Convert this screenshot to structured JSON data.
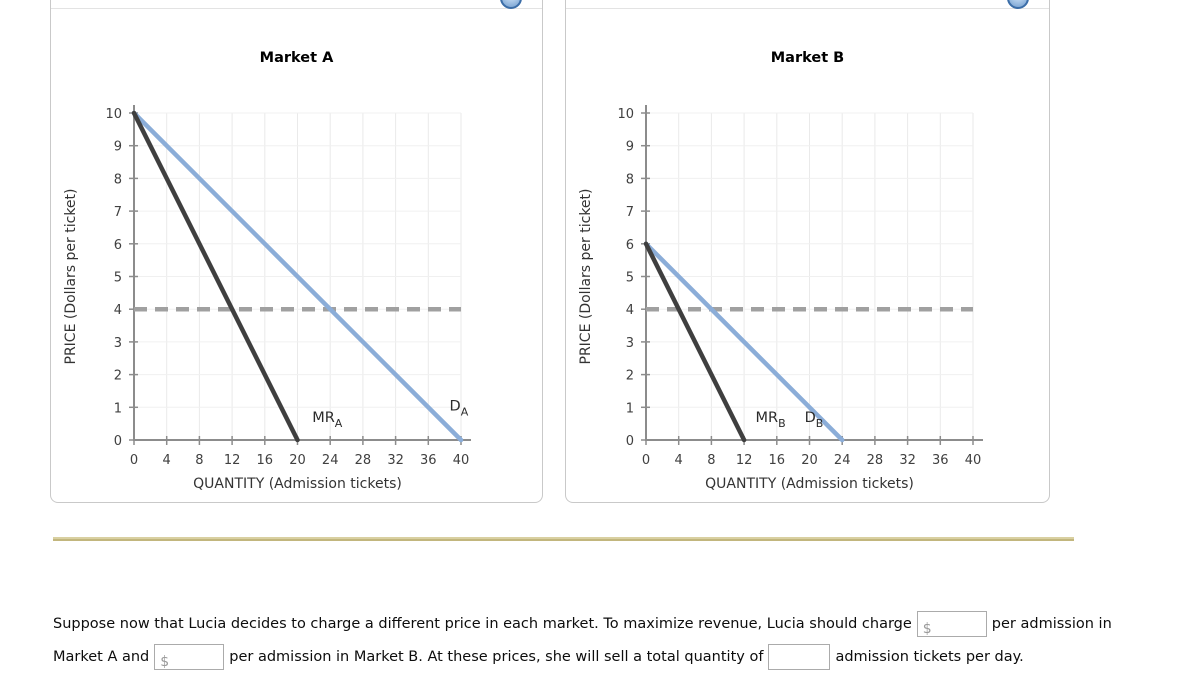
{
  "panels": [
    {
      "name": "market-a-panel",
      "icon": "graph-help-icon"
    },
    {
      "name": "market-b-panel",
      "icon": "graph-help-icon"
    }
  ],
  "accent_colors": {
    "demand_blue": "#8badd8",
    "marginal_revenue_black": "#3f3f3f",
    "price_line_gray": "#a0a0a0",
    "divider_tan": "#d9d0a1"
  },
  "chart_data": [
    {
      "type": "line",
      "title": "Market A",
      "xlabel": "QUANTITY (Admission tickets)",
      "ylabel": "PRICE (Dollars per ticket)",
      "xlim": [
        0,
        40
      ],
      "ylim": [
        0,
        10
      ],
      "xticks": [
        0,
        4,
        8,
        12,
        16,
        20,
        24,
        28,
        32,
        36,
        40
      ],
      "yticks": [
        0,
        1,
        2,
        3,
        4,
        5,
        6,
        7,
        8,
        9,
        10
      ],
      "grid": true,
      "series": [
        {
          "name": "price-line",
          "label": "",
          "subscript": "",
          "style": "dashed",
          "color": "#a0a0a0",
          "points": [
            [
              0,
              4
            ],
            [
              40,
              4
            ]
          ],
          "label_at": null
        },
        {
          "name": "demand",
          "label": "D",
          "subscript": "A",
          "style": "solid",
          "color": "#8badd8",
          "points": [
            [
              0,
              10
            ],
            [
              40,
              0
            ]
          ],
          "label_at": [
            38.6,
            0.9
          ]
        },
        {
          "name": "marginal-revenue",
          "label": "MR",
          "subscript": "A",
          "style": "solid",
          "color": "#3f3f3f",
          "points": [
            [
              0,
              10
            ],
            [
              20,
              0
            ]
          ],
          "label_at": [
            21.8,
            0.55
          ]
        }
      ]
    },
    {
      "type": "line",
      "title": "Market B",
      "xlabel": "QUANTITY (Admission tickets)",
      "ylabel": "PRICE (Dollars per ticket)",
      "xlim": [
        0,
        40
      ],
      "ylim": [
        0,
        10
      ],
      "xticks": [
        0,
        4,
        8,
        12,
        16,
        20,
        24,
        28,
        32,
        36,
        40
      ],
      "yticks": [
        0,
        1,
        2,
        3,
        4,
        5,
        6,
        7,
        8,
        9,
        10
      ],
      "grid": true,
      "series": [
        {
          "name": "price-line",
          "label": "",
          "subscript": "",
          "style": "dashed",
          "color": "#a0a0a0",
          "points": [
            [
              0,
              4
            ],
            [
              40,
              4
            ]
          ],
          "label_at": null
        },
        {
          "name": "demand",
          "label": "D",
          "subscript": "B",
          "style": "solid",
          "color": "#8badd8",
          "points": [
            [
              0,
              6
            ],
            [
              24,
              0
            ]
          ],
          "label_at": [
            19.4,
            0.55
          ]
        },
        {
          "name": "marginal-revenue",
          "label": "MR",
          "subscript": "B",
          "style": "solid",
          "color": "#3f3f3f",
          "points": [
            [
              0,
              6
            ],
            [
              12,
              0
            ]
          ],
          "label_at": [
            13.4,
            0.55
          ]
        }
      ]
    }
  ],
  "question": {
    "part1": "Suppose now that Lucia decides to charge a different price in each market. To maximize revenue, Lucia should charge",
    "part2": "per admission in",
    "part3": "Market A and",
    "part4": "per admission in Market B. At these prices, she will sell a total quantity of",
    "part5": "admission tickets per day.",
    "inputs": [
      {
        "prefix": "$",
        "value": ""
      },
      {
        "prefix": "$",
        "value": ""
      },
      {
        "prefix": "",
        "value": ""
      }
    ]
  }
}
